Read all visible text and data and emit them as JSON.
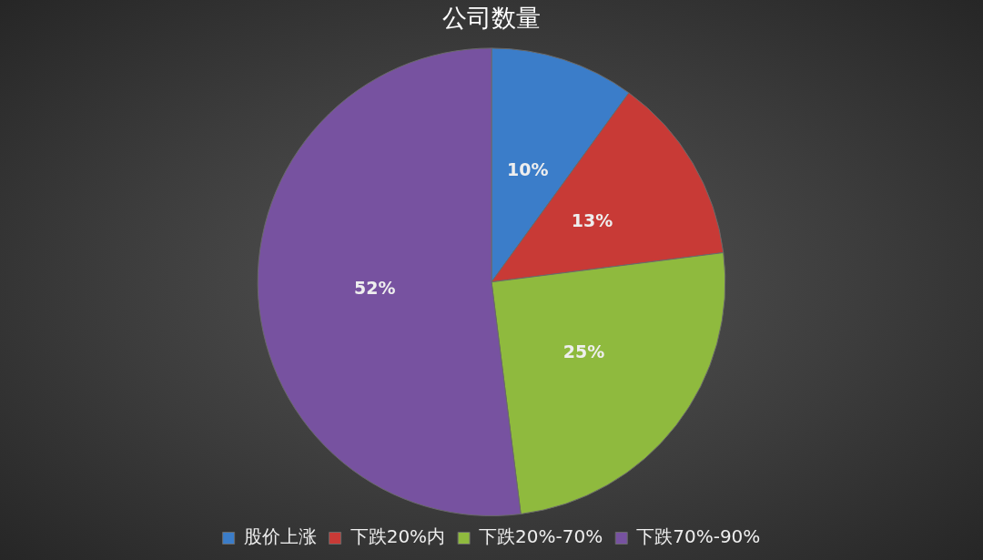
{
  "chart_data": {
    "type": "pie",
    "title": "公司数量",
    "categories": [
      "股价上涨",
      "下跌20%内",
      "下跌20%-70%",
      "下跌70%-90%"
    ],
    "values": [
      10,
      13,
      25,
      52
    ],
    "colors": [
      "#3b7dc9",
      "#c83a36",
      "#8fba3e",
      "#7752a0"
    ],
    "value_labels": [
      "10%",
      "13%",
      "25%",
      "52%"
    ],
    "legend": "bottom"
  }
}
